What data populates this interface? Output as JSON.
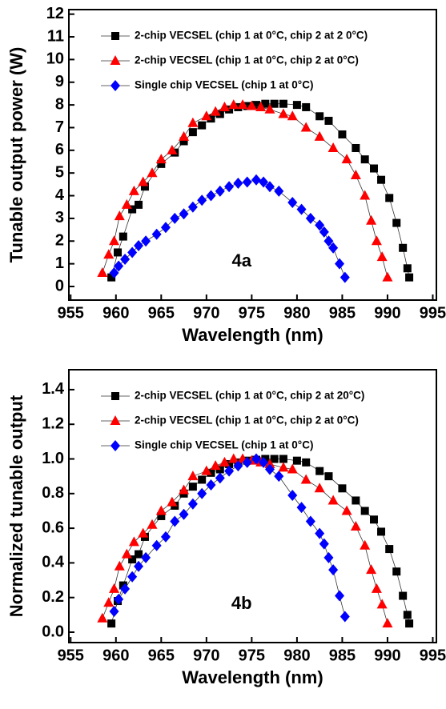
{
  "chart_data": [
    {
      "type": "line",
      "xlabel": "Wavelength (nm)",
      "ylabel": "Tunable output power (W)",
      "annotation": "4a",
      "xlim": [
        954.8,
        995.4
      ],
      "xticks": [
        955,
        960,
        965,
        970,
        975,
        980,
        985,
        990,
        995
      ],
      "ylim": [
        -0.6,
        12.2
      ],
      "yticks": [
        0,
        1,
        2,
        3,
        4,
        5,
        6,
        7,
        8,
        9,
        10,
        11,
        12
      ],
      "legend": "upper left",
      "series": [
        {
          "name": "2-chip VECSEL (chip 1 at 0°C, chip 2 at 2 0°C)",
          "color": "#000000",
          "marker": "square",
          "x": [
            959.5,
            960.2,
            960.8,
            961.8,
            962.5,
            963.2,
            965,
            966.5,
            967.5,
            968.5,
            969.5,
            970.5,
            971.5,
            972.5,
            973.5,
            974.5,
            975.5,
            976.5,
            977.5,
            978.5,
            980,
            981,
            982.5,
            983.5,
            985,
            986.5,
            987.5,
            988.5,
            989.3,
            990.2,
            991,
            991.7,
            992.2,
            992.4
          ],
          "values": [
            0.4,
            1.5,
            2.2,
            3.4,
            3.6,
            4.4,
            5.4,
            5.9,
            6.4,
            6.8,
            7.1,
            7.4,
            7.6,
            7.8,
            7.9,
            7.95,
            8.0,
            8.05,
            8.05,
            8.05,
            8.0,
            7.9,
            7.5,
            7.3,
            6.7,
            6.1,
            5.6,
            5.2,
            4.7,
            3.9,
            2.8,
            1.7,
            0.8,
            0.4
          ]
        },
        {
          "name": "2-chip VECSEL (chip 1 at 0°C, chip 2 at 0°C)",
          "color": "#ff0000",
          "marker": "triangle",
          "x": [
            958.5,
            959.2,
            959.8,
            960.4,
            961.2,
            962,
            963,
            964,
            965,
            966.2,
            967.5,
            968.5,
            970,
            971,
            972,
            973,
            974,
            975,
            976,
            977,
            978.5,
            979.5,
            981,
            982.5,
            984,
            985.5,
            986.5,
            987.5,
            988.2,
            988.8,
            989.4,
            990
          ],
          "values": [
            0.6,
            1.4,
            2.0,
            3.1,
            3.6,
            4.2,
            4.6,
            5.0,
            5.6,
            6.0,
            6.6,
            7.2,
            7.5,
            7.7,
            7.9,
            8.0,
            8.0,
            7.95,
            7.9,
            7.8,
            7.6,
            7.5,
            7.0,
            6.6,
            6.1,
            5.6,
            4.9,
            4.0,
            2.9,
            2.0,
            1.3,
            0.4
          ]
        },
        {
          "name": "Single chip VECSEL (chip 1 at 0°C)",
          "color": "#0000ff",
          "marker": "diamond",
          "x": [
            959.8,
            960.3,
            961,
            961.8,
            962.5,
            963.3,
            964.5,
            965.5,
            966.5,
            967.5,
            968.5,
            969.5,
            970.5,
            971.5,
            972.5,
            973.5,
            974.5,
            975.5,
            976.3,
            977,
            978,
            979.5,
            980.5,
            981.5,
            982.5,
            983,
            983.5,
            984,
            984.7,
            985.3
          ],
          "values": [
            0.6,
            0.9,
            1.2,
            1.5,
            1.8,
            2.0,
            2.3,
            2.6,
            3.0,
            3.2,
            3.5,
            3.8,
            4.0,
            4.2,
            4.4,
            4.55,
            4.6,
            4.7,
            4.6,
            4.4,
            4.2,
            3.7,
            3.4,
            3.0,
            2.7,
            2.4,
            2.0,
            1.7,
            1.0,
            0.4
          ]
        }
      ]
    },
    {
      "type": "line",
      "xlabel": "Wavelength (nm)",
      "ylabel": "Normalized tunable output",
      "annotation": "4b",
      "xlim": [
        954.8,
        995.4
      ],
      "xticks": [
        955,
        960,
        965,
        970,
        975,
        980,
        985,
        990,
        995
      ],
      "ylim": [
        -0.06,
        1.515
      ],
      "yticks": [
        {
          "value": 0,
          "label": "0.0"
        },
        0.2,
        0.4,
        0.6,
        0.8,
        {
          "value": 1,
          "label": "1.0"
        },
        1.2,
        1.4
      ],
      "legend": "upper left",
      "series": [
        {
          "name": "2-chip VECSEL (chip 1 at 0°C, chip 2 at 20°C)",
          "color": "#000000",
          "marker": "square",
          "x": [
            959.5,
            960.2,
            960.8,
            961.8,
            962.5,
            963.2,
            965,
            966.5,
            967.5,
            968.5,
            969.5,
            970.5,
            971.5,
            972.5,
            973.5,
            974.5,
            975.5,
            976.5,
            977.5,
            978.5,
            980,
            981,
            982.5,
            983.5,
            985,
            986.5,
            987.5,
            988.5,
            989.3,
            990.2,
            991,
            991.7,
            992.2,
            992.4
          ],
          "values": [
            0.05,
            0.18,
            0.27,
            0.42,
            0.45,
            0.55,
            0.67,
            0.73,
            0.8,
            0.84,
            0.88,
            0.92,
            0.94,
            0.97,
            0.98,
            0.99,
            0.995,
            1.0,
            1.0,
            1.0,
            0.99,
            0.98,
            0.93,
            0.9,
            0.83,
            0.76,
            0.7,
            0.65,
            0.58,
            0.48,
            0.35,
            0.21,
            0.1,
            0.05
          ]
        },
        {
          "name": "2-chip VECSEL (chip 1 at 0°C, chip 2 at 0°C)",
          "color": "#ff0000",
          "marker": "triangle",
          "x": [
            958.5,
            959.2,
            959.8,
            960.4,
            961.2,
            962,
            963,
            964,
            965,
            966.2,
            967.5,
            968.5,
            970,
            971,
            972,
            973,
            974,
            975,
            976,
            977,
            978.5,
            979.5,
            981,
            982.5,
            984,
            985.5,
            986.5,
            987.5,
            988.2,
            988.8,
            989.4,
            990
          ],
          "values": [
            0.08,
            0.17,
            0.25,
            0.38,
            0.45,
            0.52,
            0.57,
            0.62,
            0.7,
            0.75,
            0.82,
            0.9,
            0.93,
            0.96,
            0.98,
            1.0,
            1.0,
            0.99,
            0.98,
            0.97,
            0.95,
            0.94,
            0.88,
            0.83,
            0.76,
            0.7,
            0.61,
            0.5,
            0.36,
            0.25,
            0.16,
            0.05
          ]
        },
        {
          "name": "Single chip VECSEL (chip 1 at 0°C)",
          "color": "#0000ff",
          "marker": "diamond",
          "x": [
            959.8,
            960.3,
            961,
            961.8,
            962.5,
            963.3,
            964.5,
            965.5,
            966.5,
            967.5,
            968.5,
            969.5,
            970.5,
            971.5,
            972.5,
            973.5,
            974.5,
            975.5,
            976.3,
            977,
            978,
            979.5,
            980.5,
            981.5,
            982.5,
            983,
            983.5,
            984,
            984.7,
            985.3
          ],
          "values": [
            0.12,
            0.19,
            0.25,
            0.32,
            0.38,
            0.43,
            0.5,
            0.55,
            0.64,
            0.68,
            0.74,
            0.8,
            0.85,
            0.89,
            0.93,
            0.96,
            0.98,
            1.0,
            0.98,
            0.94,
            0.9,
            0.79,
            0.72,
            0.64,
            0.57,
            0.51,
            0.43,
            0.36,
            0.21,
            0.09
          ]
        }
      ]
    }
  ]
}
